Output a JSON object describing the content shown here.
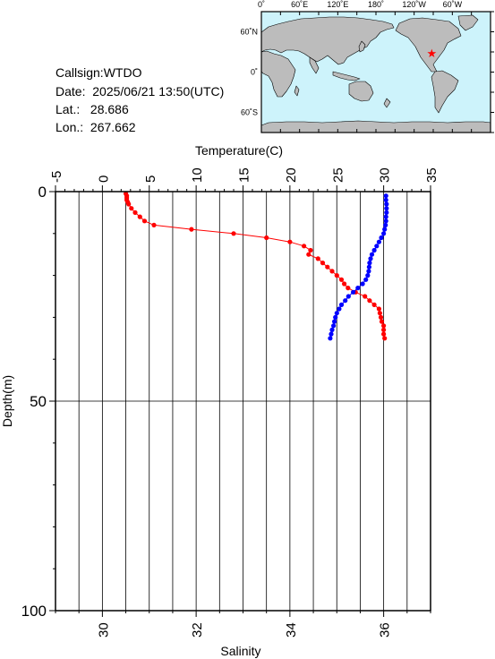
{
  "header": {
    "callsign_line": "Callsign:WTDO",
    "date_line": "Date:  2025/06/21 13:50(UTC)",
    "lat_line": "Lat.:   28.686",
    "lon_line": "Lon.:  267.662"
  },
  "map": {
    "lon_labels": [
      "0˚",
      "60˚E",
      "120˚E",
      "180˚",
      "120˚W",
      "60˚W"
    ],
    "lat_labels": [
      "60˚N",
      "0˚",
      "60˚S"
    ],
    "ocean_color": "#cdf3fb",
    "land_color": "#bcbcbc",
    "marker": "red-star",
    "marker_lon": 267.662,
    "marker_lat": 28.686
  },
  "chart_data": {
    "type": "scatter",
    "title": "",
    "temperature_axis": {
      "label": "Temperature(C)",
      "range": [
        -5,
        35
      ],
      "ticks": [
        "-5",
        "0",
        "5",
        "10",
        "15",
        "20",
        "25",
        "30",
        "35"
      ]
    },
    "salinity_axis": {
      "label": "Salinity",
      "range": [
        29,
        37
      ],
      "ticks": [
        "30",
        "32",
        "34",
        "36"
      ]
    },
    "depth_axis": {
      "label": "Depth(m)",
      "range": [
        0,
        100
      ],
      "ticks": [
        "0",
        "50",
        "100"
      ]
    },
    "grid": true,
    "series": [
      {
        "color": "#ff0000",
        "x_axis": "temperature",
        "depth": [
          0.5,
          1,
          1.5,
          2,
          2.5,
          3,
          4,
          5,
          6,
          7,
          8,
          9,
          10,
          11,
          12,
          13,
          14,
          15,
          16,
          17,
          18,
          19,
          20,
          21,
          22,
          23,
          24,
          25,
          26,
          27,
          28,
          29,
          30,
          31,
          32,
          33,
          34,
          35
        ],
        "values": [
          2.5,
          2.6,
          2.6,
          2.6,
          2.7,
          2.8,
          3.1,
          3.5,
          4.0,
          4.5,
          5.5,
          9.5,
          14.0,
          17.5,
          20.0,
          21.5,
          22.2,
          22.0,
          23.0,
          23.5,
          24.0,
          24.5,
          25.0,
          25.5,
          25.8,
          26.2,
          27.0,
          28.0,
          28.5,
          29.0,
          29.5,
          29.6,
          29.7,
          29.8,
          30.0,
          30.0,
          30.0,
          30.1
        ]
      },
      {
        "color": "#0000ff",
        "x_axis": "salinity",
        "depth": [
          1,
          2,
          3,
          4,
          5,
          6,
          7,
          8,
          9,
          10,
          11,
          12,
          13,
          14,
          15,
          16,
          17,
          18,
          19,
          20,
          21,
          22,
          23,
          24,
          25,
          26,
          27,
          28,
          29,
          30,
          31,
          32,
          33,
          34,
          35
        ],
        "values": [
          36.05,
          36.05,
          36.06,
          36.06,
          36.06,
          36.05,
          36.05,
          36.04,
          36.02,
          36.0,
          35.95,
          35.9,
          35.85,
          35.8,
          35.75,
          35.72,
          35.7,
          35.69,
          35.68,
          35.66,
          35.62,
          35.55,
          35.45,
          35.35,
          35.25,
          35.18,
          35.1,
          35.05,
          35.0,
          34.97,
          34.95,
          34.93,
          34.9,
          34.88,
          34.86
        ]
      }
    ]
  }
}
